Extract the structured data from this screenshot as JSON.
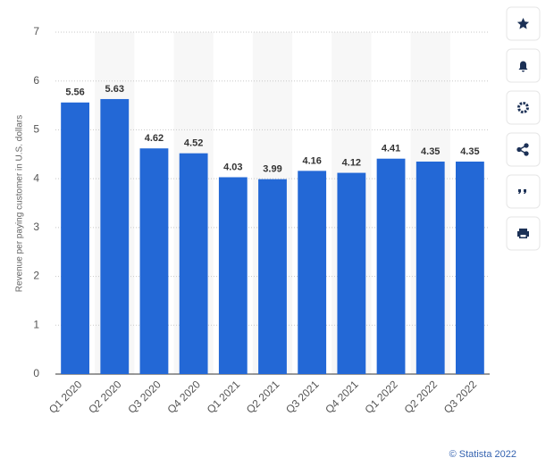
{
  "chart_data": {
    "type": "bar",
    "y_label": "Revenue per paying customer in U.S. dollars",
    "categories": [
      "Q1 2020",
      "Q2 2020",
      "Q3 2020",
      "Q4 2020",
      "Q1 2021",
      "Q2 2021",
      "Q3 2021",
      "Q4 2021",
      "Q1 2022",
      "Q2 2022",
      "Q3 2022"
    ],
    "values": [
      5.56,
      5.63,
      4.62,
      4.52,
      4.03,
      3.99,
      4.16,
      4.12,
      4.41,
      4.35,
      4.35
    ],
    "color": "#2368d6",
    "ylim": [
      0,
      7
    ],
    "yticks": [
      0,
      1,
      2,
      3,
      4,
      5,
      6,
      7
    ],
    "grid": true,
    "credit": "© Statista 2022"
  }
}
